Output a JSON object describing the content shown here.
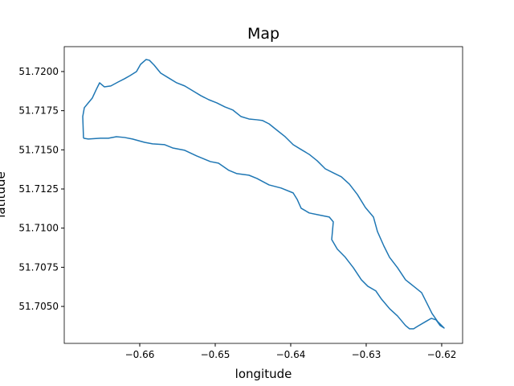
{
  "chart_data": {
    "type": "line",
    "title": "Map",
    "x_label": "longitude",
    "y_label": "latitude",
    "color": "#1f77b4",
    "x": [
      -0.66745,
      -0.66681,
      -0.66521,
      -0.66415,
      -0.66309,
      -0.66202,
      -0.66096,
      -0.65936,
      -0.6583,
      -0.6567,
      -0.65564,
      -0.65404,
      -0.65245,
      -0.65064,
      -0.64957,
      -0.64819,
      -0.64713,
      -0.64553,
      -0.64447,
      -0.64287,
      -0.64128,
      -0.63968,
      -0.63915,
      -0.63862,
      -0.63755,
      -0.63596,
      -0.63489,
      -0.63436,
      -0.63457,
      -0.63383,
      -0.63277,
      -0.6317,
      -0.63064,
      -0.62979,
      -0.62872,
      -0.62798,
      -0.62691,
      -0.62585,
      -0.62479,
      -0.62426,
      -0.62372,
      -0.62319,
      -0.62213,
      -0.62138,
      -0.62074,
      -0.62021,
      -0.61968,
      -0.62053,
      -0.62128,
      -0.62191,
      -0.62266,
      -0.62372,
      -0.62479,
      -0.62585,
      -0.62691,
      -0.62766,
      -0.62851,
      -0.62904,
      -0.63011,
      -0.63117,
      -0.63223,
      -0.6333,
      -0.63436,
      -0.63543,
      -0.63649,
      -0.63755,
      -0.63862,
      -0.63968,
      -0.64074,
      -0.64181,
      -0.64287,
      -0.64372,
      -0.64447,
      -0.64553,
      -0.6466,
      -0.64766,
      -0.64872,
      -0.64979,
      -0.65085,
      -0.65191,
      -0.65298,
      -0.65404,
      -0.65511,
      -0.65617,
      -0.65723,
      -0.65809,
      -0.65872,
      -0.65915,
      -0.65989,
      -0.66043,
      -0.66128,
      -0.66202,
      -0.66287,
      -0.66383,
      -0.66468,
      -0.66532,
      -0.66574,
      -0.66628,
      -0.66681,
      -0.66734,
      -0.66755,
      -0.66745
    ],
    "values": [
      51.71574,
      51.71569,
      51.71574,
      51.71574,
      51.71584,
      51.71579,
      51.71569,
      51.71548,
      51.71538,
      51.71533,
      51.71512,
      51.71497,
      51.71461,
      51.71425,
      51.71415,
      51.71369,
      51.71348,
      51.71338,
      51.71317,
      51.71276,
      51.71256,
      51.71225,
      51.71184,
      51.71127,
      51.71097,
      51.71081,
      51.71071,
      51.7104,
      51.70927,
      51.70866,
      51.70814,
      51.70747,
      51.7067,
      51.70629,
      51.70599,
      51.70547,
      51.70486,
      51.70439,
      51.70378,
      51.70357,
      51.70357,
      51.70373,
      51.70403,
      51.70424,
      51.70414,
      51.70378,
      51.70362,
      51.70403,
      51.70455,
      51.70516,
      51.70588,
      51.70629,
      51.7067,
      51.70747,
      51.70814,
      51.70886,
      51.70978,
      51.71071,
      51.71132,
      51.71215,
      51.71281,
      51.71328,
      51.71353,
      51.71379,
      51.7143,
      51.71471,
      51.71502,
      51.71533,
      51.71584,
      51.71625,
      51.71666,
      51.71687,
      51.71692,
      51.71697,
      51.71713,
      51.71754,
      51.71774,
      51.718,
      51.7182,
      51.71846,
      51.71877,
      51.71908,
      51.71928,
      51.71959,
      51.7199,
      51.72041,
      51.72072,
      51.72077,
      51.72046,
      51.72,
      51.71974,
      51.71954,
      51.71933,
      51.71908,
      51.71902,
      51.71928,
      51.71887,
      51.71831,
      51.718,
      51.71769,
      51.71713,
      51.71574
    ],
    "xlim": [
      -0.67,
      -0.61723
    ],
    "ylim": [
      51.70264,
      51.72159
    ],
    "xticks": [
      {
        "value": -0.66,
        "label": "−0.66"
      },
      {
        "value": -0.65,
        "label": "−0.65"
      },
      {
        "value": -0.64,
        "label": "−0.64"
      },
      {
        "value": -0.63,
        "label": "−0.63"
      },
      {
        "value": -0.62,
        "label": "−0.62"
      }
    ],
    "yticks": [
      {
        "value": 51.705,
        "label": "51.7050"
      },
      {
        "value": 51.7075,
        "label": "51.7075"
      },
      {
        "value": 51.71,
        "label": "51.7100"
      },
      {
        "value": 51.7125,
        "label": "51.7125"
      },
      {
        "value": 51.715,
        "label": "51.7150"
      },
      {
        "value": 51.7175,
        "label": "51.7175"
      },
      {
        "value": 51.72,
        "label": "51.7200"
      }
    ],
    "grid": false
  }
}
